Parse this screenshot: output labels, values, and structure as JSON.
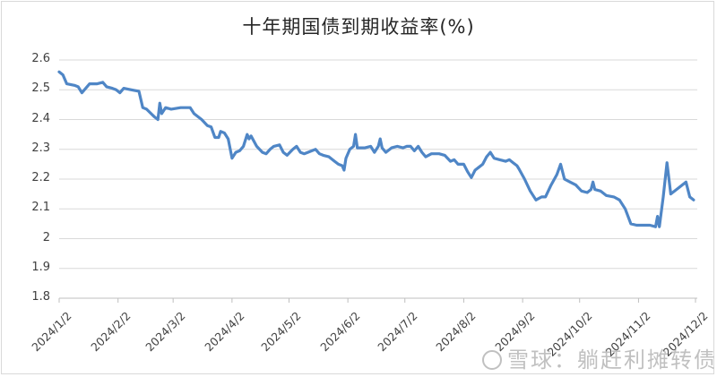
{
  "chart_data": {
    "type": "line",
    "title": "十年期国债到期收益率(%)",
    "xlabel": "",
    "ylabel": "",
    "ylim": [
      1.8,
      2.6
    ],
    "yticks": [
      "2.6",
      "2.5",
      "2.4",
      "2.3",
      "2.2",
      "2.1",
      "2",
      "1.9",
      "1.8"
    ],
    "xticks": [
      "2024/1/2",
      "2024/2/2",
      "2024/3/2",
      "2024/4/2",
      "2024/5/2",
      "2024/6/2",
      "2024/7/2",
      "2024/8/2",
      "2024/9/2",
      "2024/10/2",
      "2024/11/2",
      "2024/12/2"
    ],
    "grid": "horizontal",
    "legend": "none",
    "line_color": "#4f86c6",
    "series": [
      {
        "name": "十年期国债到期收益率",
        "points": [
          [
            "2024/1/2",
            2.56
          ],
          [
            "2024/1/4",
            2.55
          ],
          [
            "2024/1/6",
            2.52
          ],
          [
            "2024/1/10",
            2.515
          ],
          [
            "2024/1/12",
            2.51
          ],
          [
            "2024/1/14",
            2.49
          ],
          [
            "2024/1/16",
            2.505
          ],
          [
            "2024/1/18",
            2.52
          ],
          [
            "2024/1/22",
            2.52
          ],
          [
            "2024/1/25",
            2.525
          ],
          [
            "2024/1/27",
            2.51
          ],
          [
            "2024/1/30",
            2.505
          ],
          [
            "2024/2/1",
            2.5
          ],
          [
            "2024/2/3",
            2.49
          ],
          [
            "2024/2/5",
            2.505
          ],
          [
            "2024/2/9",
            2.5
          ],
          [
            "2024/2/13",
            2.495
          ],
          [
            "2024/2/15",
            2.44
          ],
          [
            "2024/2/17",
            2.435
          ],
          [
            "2024/2/21",
            2.41
          ],
          [
            "2024/2/23",
            2.4
          ],
          [
            "2024/2/24",
            2.455
          ],
          [
            "2024/2/25",
            2.42
          ],
          [
            "2024/2/27",
            2.44
          ],
          [
            "2024/3/1",
            2.435
          ],
          [
            "2024/3/6",
            2.44
          ],
          [
            "2024/3/11",
            2.44
          ],
          [
            "2024/3/13",
            2.42
          ],
          [
            "2024/3/17",
            2.4
          ],
          [
            "2024/3/20",
            2.38
          ],
          [
            "2024/3/22",
            2.375
          ],
          [
            "2024/3/24",
            2.34
          ],
          [
            "2024/3/26",
            2.34
          ],
          [
            "2024/3/27",
            2.36
          ],
          [
            "2024/3/29",
            2.355
          ],
          [
            "2024/3/31",
            2.335
          ],
          [
            "2024/4/2",
            2.27
          ],
          [
            "2024/4/4",
            2.29
          ],
          [
            "2024/4/6",
            2.295
          ],
          [
            "2024/4/8",
            2.31
          ],
          [
            "2024/4/10",
            2.35
          ],
          [
            "2024/4/11",
            2.335
          ],
          [
            "2024/4/12",
            2.345
          ],
          [
            "2024/4/15",
            2.31
          ],
          [
            "2024/4/18",
            2.29
          ],
          [
            "2024/4/20",
            2.285
          ],
          [
            "2024/4/22",
            2.3
          ],
          [
            "2024/4/24",
            2.31
          ],
          [
            "2024/4/27",
            2.315
          ],
          [
            "2024/4/29",
            2.29
          ],
          [
            "2024/5/1",
            2.28
          ],
          [
            "2024/5/4",
            2.3
          ],
          [
            "2024/5/6",
            2.31
          ],
          [
            "2024/5/8",
            2.29
          ],
          [
            "2024/5/10",
            2.285
          ],
          [
            "2024/5/12",
            2.29
          ],
          [
            "2024/5/14",
            2.295
          ],
          [
            "2024/5/16",
            2.3
          ],
          [
            "2024/5/18",
            2.285
          ],
          [
            "2024/5/20",
            2.28
          ],
          [
            "2024/5/23",
            2.275
          ],
          [
            "2024/5/26",
            2.26
          ],
          [
            "2024/5/28",
            2.25
          ],
          [
            "2024/5/30",
            2.245
          ],
          [
            "2024/5/31",
            2.23
          ],
          [
            "2024/6/1",
            2.27
          ],
          [
            "2024/6/3",
            2.3
          ],
          [
            "2024/6/5",
            2.31
          ],
          [
            "2024/6/6",
            2.35
          ],
          [
            "2024/6/7",
            2.305
          ],
          [
            "2024/6/11",
            2.305
          ],
          [
            "2024/6/14",
            2.31
          ],
          [
            "2024/6/16",
            2.29
          ],
          [
            "2024/6/18",
            2.31
          ],
          [
            "2024/6/19",
            2.335
          ],
          [
            "2024/6/20",
            2.305
          ],
          [
            "2024/6/22",
            2.29
          ],
          [
            "2024/6/25",
            2.305
          ],
          [
            "2024/6/28",
            2.31
          ],
          [
            "2024/7/1",
            2.305
          ],
          [
            "2024/7/3",
            2.31
          ],
          [
            "2024/7/5",
            2.31
          ],
          [
            "2024/7/7",
            2.295
          ],
          [
            "2024/7/9",
            2.31
          ],
          [
            "2024/7/11",
            2.29
          ],
          [
            "2024/7/13",
            2.275
          ],
          [
            "2024/7/16",
            2.285
          ],
          [
            "2024/7/20",
            2.285
          ],
          [
            "2024/7/23",
            2.28
          ],
          [
            "2024/7/26",
            2.26
          ],
          [
            "2024/7/28",
            2.265
          ],
          [
            "2024/7/30",
            2.25
          ],
          [
            "2024/8/2",
            2.25
          ],
          [
            "2024/8/4",
            2.225
          ],
          [
            "2024/8/6",
            2.205
          ],
          [
            "2024/8/8",
            2.23
          ],
          [
            "2024/8/10",
            2.24
          ],
          [
            "2024/8/12",
            2.25
          ],
          [
            "2024/8/14",
            2.275
          ],
          [
            "2024/8/16",
            2.29
          ],
          [
            "2024/8/18",
            2.27
          ],
          [
            "2024/8/21",
            2.265
          ],
          [
            "2024/8/24",
            2.26
          ],
          [
            "2024/8/26",
            2.265
          ],
          [
            "2024/8/28",
            2.255
          ],
          [
            "2024/8/30",
            2.245
          ],
          [
            "2024/8/31",
            2.235
          ],
          [
            "2024/9/3",
            2.2
          ],
          [
            "2024/9/6",
            2.16
          ],
          [
            "2024/9/9",
            2.13
          ],
          [
            "2024/9/12",
            2.14
          ],
          [
            "2024/9/14",
            2.14
          ],
          [
            "2024/9/17",
            2.18
          ],
          [
            "2024/9/20",
            2.215
          ],
          [
            "2024/9/22",
            2.25
          ],
          [
            "2024/9/24",
            2.2
          ],
          [
            "2024/9/27",
            2.19
          ],
          [
            "2024/9/30",
            2.18
          ],
          [
            "2024/10/3",
            2.16
          ],
          [
            "2024/10/6",
            2.155
          ],
          [
            "2024/10/8",
            2.165
          ],
          [
            "2024/10/9",
            2.19
          ],
          [
            "2024/10/10",
            2.165
          ],
          [
            "2024/10/13",
            2.16
          ],
          [
            "2024/10/16",
            2.145
          ],
          [
            "2024/10/20",
            2.14
          ],
          [
            "2024/10/23",
            2.13
          ],
          [
            "2024/10/26",
            2.1
          ],
          [
            "2024/10/29",
            2.05
          ],
          [
            "2024/11/1",
            2.045
          ],
          [
            "2024/11/5",
            2.045
          ],
          [
            "2024/11/8",
            2.045
          ],
          [
            "2024/11/11",
            2.04
          ],
          [
            "2024/11/12",
            2.075
          ],
          [
            "2024/11/13",
            2.04
          ],
          [
            "2024/11/15",
            2.14
          ],
          [
            "2024/11/17",
            2.255
          ],
          [
            "2024/11/19",
            2.15
          ],
          [
            "2024/11/23",
            2.17
          ],
          [
            "2024/11/27",
            2.19
          ],
          [
            "2024/11/29",
            2.14
          ],
          [
            "2024/12/1",
            2.13
          ]
        ]
      }
    ]
  },
  "watermark": {
    "text": "雪球：躺赶利摊转债"
  }
}
